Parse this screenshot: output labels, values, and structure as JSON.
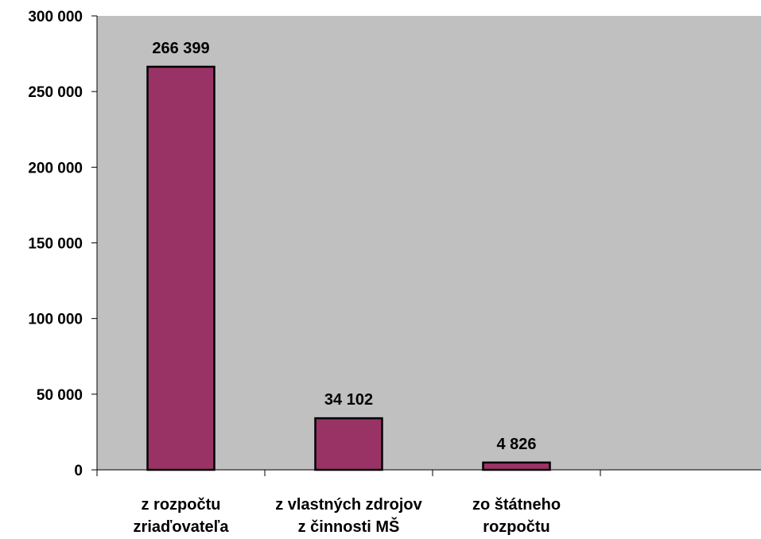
{
  "chart_data": {
    "type": "bar",
    "categories": [
      [
        "z rozpočtu",
        "zriaďovateľa"
      ],
      [
        "z vlastných zdrojov",
        "z činnosti MŠ"
      ],
      [
        "zo štátneho",
        "rozpočtu"
      ]
    ],
    "values": [
      266399,
      34102,
      4826
    ],
    "data_labels": [
      "266 399",
      "34 102",
      "4 826"
    ],
    "y_ticks": [
      0,
      50000,
      100000,
      150000,
      200000,
      250000,
      300000
    ],
    "y_tick_labels": [
      "0",
      "50 000",
      "100 000",
      "150 000",
      "200 000",
      "250 000",
      "300 000"
    ],
    "ylim": [
      0,
      300000
    ],
    "grid": false,
    "legend": false,
    "title": "",
    "xlabel": "",
    "ylabel": "",
    "colors": {
      "bar_fill": "#993366",
      "bar_stroke": "#000000",
      "plot_background": "#c0c0c0",
      "page_background": "#ffffff"
    }
  }
}
